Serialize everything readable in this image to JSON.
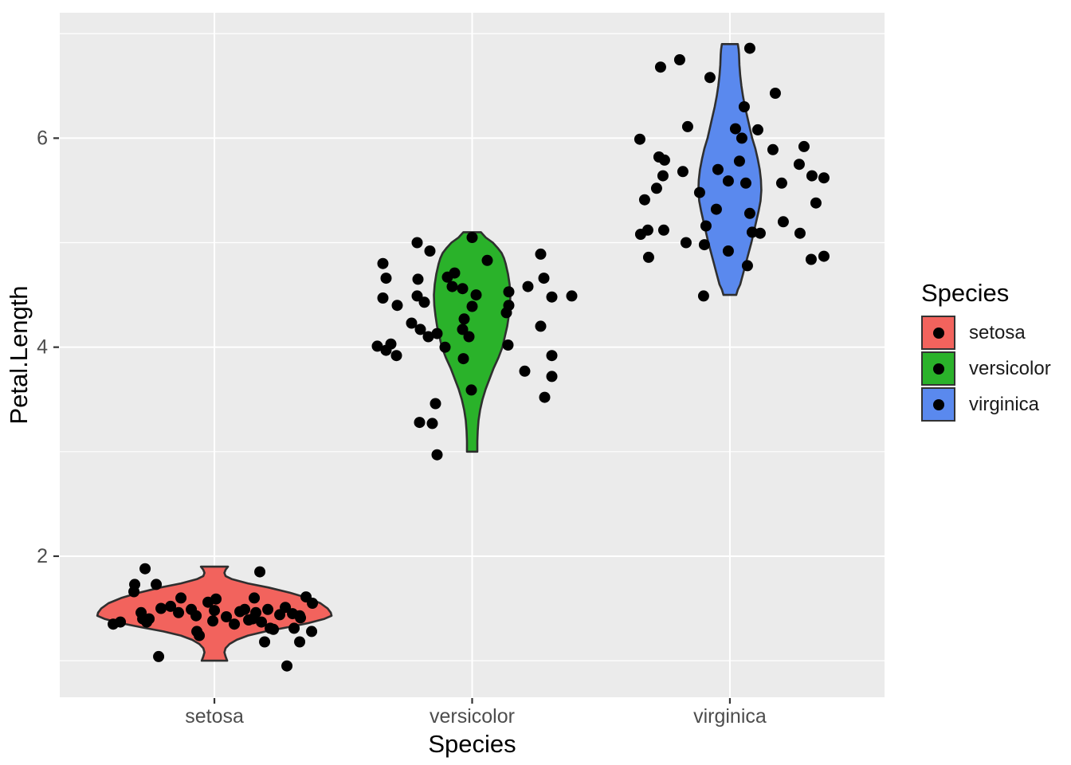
{
  "chart_data": {
    "type": "violin",
    "description": "ggplot-style violin plot with jittered points of iris Petal.Length by Species",
    "x_axis": {
      "label": "Species",
      "categories": [
        "setosa",
        "versicolor",
        "virginica"
      ]
    },
    "y_axis": {
      "label": "Petal.Length",
      "ticks": [
        2,
        4,
        6
      ],
      "minor_ticks": [
        1,
        3,
        5,
        7
      ],
      "range": [
        0.65,
        7.2
      ]
    },
    "legend": {
      "title": "Species",
      "entries": [
        {
          "label": "setosa",
          "color": "#F2635D"
        },
        {
          "label": "versicolor",
          "color": "#2AB22A"
        },
        {
          "label": "virginica",
          "color": "#5A89EE"
        }
      ]
    },
    "style": {
      "panel_bg": "#EBEBEB",
      "grid_color": "#FFFFFF",
      "violin_outline": "#2F2F2F",
      "point_color": "#000000",
      "tick_mark_color": "#333333",
      "tick_label_color": "#4D4D4D",
      "axis_title_color": "#000000"
    },
    "series": [
      {
        "name": "setosa",
        "color": "#F2635D",
        "violin_profile": [
          [
            1.9,
            17
          ],
          [
            1.87,
            14
          ],
          [
            1.84,
            12.5
          ],
          [
            1.81,
            14
          ],
          [
            1.78,
            22
          ],
          [
            1.74,
            42
          ],
          [
            1.7,
            68
          ],
          [
            1.65,
            95
          ],
          [
            1.6,
            117
          ],
          [
            1.55,
            133
          ],
          [
            1.5,
            142
          ],
          [
            1.46,
            146
          ],
          [
            1.43,
            147
          ],
          [
            1.4,
            138
          ],
          [
            1.36,
            118
          ],
          [
            1.32,
            92
          ],
          [
            1.28,
            64
          ],
          [
            1.24,
            42
          ],
          [
            1.2,
            28
          ],
          [
            1.16,
            19
          ],
          [
            1.12,
            14
          ],
          [
            1.08,
            12.5
          ],
          [
            1.04,
            14
          ],
          [
            1.0,
            16
          ]
        ],
        "points": [
          [
            -87,
            1.88
          ],
          [
            57,
            1.85
          ],
          [
            -100,
            1.73
          ],
          [
            -73,
            1.73
          ],
          [
            -101,
            1.66
          ],
          [
            -42,
            1.6
          ],
          [
            2,
            1.59
          ],
          [
            50,
            1.6
          ],
          [
            115,
            1.61
          ],
          [
            123,
            1.55
          ],
          [
            -92,
            1.46
          ],
          [
            -67,
            1.5
          ],
          [
            -45,
            1.46
          ],
          [
            -29,
            1.49
          ],
          [
            -23,
            1.43
          ],
          [
            0,
            1.48
          ],
          [
            32,
            1.47
          ],
          [
            38,
            1.49
          ],
          [
            52,
            1.46
          ],
          [
            67,
            1.49
          ],
          [
            89,
            1.51
          ],
          [
            98,
            1.45
          ],
          [
            107,
            1.43
          ],
          [
            -127,
            1.35
          ],
          [
            -118,
            1.37
          ],
          [
            -90,
            1.4
          ],
          [
            -85,
            1.37
          ],
          [
            -82,
            1.4
          ],
          [
            -2,
            1.38
          ],
          [
            43,
            1.39
          ],
          [
            48,
            1.4
          ],
          [
            59,
            1.37
          ],
          [
            70,
            1.31
          ],
          [
            74,
            1.3
          ],
          [
            100,
            1.31
          ],
          [
            108,
            1.41
          ],
          [
            -22,
            1.28
          ],
          [
            -19,
            1.24
          ],
          [
            122,
            1.28
          ],
          [
            63,
            1.18
          ],
          [
            107,
            1.18
          ],
          [
            -70,
            1.04
          ],
          [
            91,
            0.95
          ],
          [
            -55,
            1.52
          ],
          [
            15,
            1.42
          ],
          [
            -8,
            1.56
          ],
          [
            25,
            1.35
          ],
          [
            82,
            1.44
          ]
        ]
      },
      {
        "name": "versicolor",
        "color": "#2AB22A",
        "violin_profile": [
          [
            5.1,
            11
          ],
          [
            5.05,
            17
          ],
          [
            5.0,
            26
          ],
          [
            4.95,
            32
          ],
          [
            4.9,
            37
          ],
          [
            4.85,
            40
          ],
          [
            4.8,
            42
          ],
          [
            4.7,
            45
          ],
          [
            4.6,
            47
          ],
          [
            4.5,
            48
          ],
          [
            4.4,
            47.5
          ],
          [
            4.3,
            46
          ],
          [
            4.2,
            44
          ],
          [
            4.1,
            41
          ],
          [
            4.0,
            38
          ],
          [
            3.9,
            33
          ],
          [
            3.8,
            27
          ],
          [
            3.7,
            22
          ],
          [
            3.6,
            17
          ],
          [
            3.5,
            13
          ],
          [
            3.4,
            10
          ],
          [
            3.3,
            8
          ],
          [
            3.2,
            7
          ],
          [
            3.1,
            6.5
          ],
          [
            3.0,
            6.5
          ]
        ],
        "points": [
          [
            -69,
            5.0
          ],
          [
            -53,
            4.92
          ],
          [
            0,
            5.05
          ],
          [
            19,
            4.83
          ],
          [
            86,
            4.89
          ],
          [
            -112,
            4.8
          ],
          [
            -108,
            4.66
          ],
          [
            -22,
            4.71
          ],
          [
            -31,
            4.67
          ],
          [
            -68,
            4.65
          ],
          [
            -25,
            4.58
          ],
          [
            -12,
            4.56
          ],
          [
            90,
            4.66
          ],
          [
            70,
            4.58
          ],
          [
            100,
            4.48
          ],
          [
            125,
            4.49
          ],
          [
            -112,
            4.47
          ],
          [
            -94,
            4.4
          ],
          [
            -69,
            4.49
          ],
          [
            -60,
            4.43
          ],
          [
            5,
            4.5
          ],
          [
            0,
            4.39
          ],
          [
            46,
            4.53
          ],
          [
            46,
            4.4
          ],
          [
            43,
            4.33
          ],
          [
            -10,
            4.27
          ],
          [
            -76,
            4.23
          ],
          [
            -12,
            4.17
          ],
          [
            -4,
            4.1
          ],
          [
            -65,
            4.17
          ],
          [
            -55,
            4.1
          ],
          [
            -44,
            4.13
          ],
          [
            86,
            4.2
          ],
          [
            -119,
            4.01
          ],
          [
            -102,
            4.03
          ],
          [
            -108,
            3.97
          ],
          [
            -95,
            3.92
          ],
          [
            -34,
            4.0
          ],
          [
            45,
            4.02
          ],
          [
            -11,
            3.89
          ],
          [
            66,
            3.77
          ],
          [
            100,
            3.92
          ],
          [
            100,
            3.72
          ],
          [
            -1,
            3.59
          ],
          [
            91,
            3.52
          ],
          [
            -46,
            3.46
          ],
          [
            -66,
            3.28
          ],
          [
            -50,
            3.27
          ],
          [
            -44,
            2.97
          ]
        ]
      },
      {
        "name": "virginica",
        "color": "#5A89EE",
        "violin_profile": [
          [
            6.9,
            10
          ],
          [
            6.85,
            11
          ],
          [
            6.8,
            11.5
          ],
          [
            6.7,
            12
          ],
          [
            6.6,
            13
          ],
          [
            6.5,
            14.5
          ],
          [
            6.4,
            16.5
          ],
          [
            6.3,
            19
          ],
          [
            6.2,
            22
          ],
          [
            6.1,
            25
          ],
          [
            6.0,
            28
          ],
          [
            5.9,
            32
          ],
          [
            5.8,
            35
          ],
          [
            5.7,
            37.5
          ],
          [
            5.6,
            39
          ],
          [
            5.5,
            39.5
          ],
          [
            5.4,
            38.5
          ],
          [
            5.3,
            36
          ],
          [
            5.2,
            33
          ],
          [
            5.1,
            30
          ],
          [
            5.0,
            27
          ],
          [
            4.9,
            23.5
          ],
          [
            4.8,
            20
          ],
          [
            4.7,
            16.5
          ],
          [
            4.6,
            13
          ],
          [
            4.55,
            10
          ],
          [
            4.5,
            8
          ]
        ],
        "points": [
          [
            25,
            6.86
          ],
          [
            -63,
            6.75
          ],
          [
            -87,
            6.68
          ],
          [
            -25,
            6.58
          ],
          [
            57,
            6.43
          ],
          [
            18,
            6.3
          ],
          [
            -113,
            5.99
          ],
          [
            -53,
            6.11
          ],
          [
            7,
            6.09
          ],
          [
            15,
            6.0
          ],
          [
            35,
            6.08
          ],
          [
            54,
            5.89
          ],
          [
            93,
            5.92
          ],
          [
            -89,
            5.82
          ],
          [
            -82,
            5.79
          ],
          [
            87,
            5.75
          ],
          [
            -92,
            5.52
          ],
          [
            -59,
            5.68
          ],
          [
            -84,
            5.64
          ],
          [
            12,
            5.78
          ],
          [
            -15,
            5.7
          ],
          [
            -2,
            5.59
          ],
          [
            20,
            5.57
          ],
          [
            65,
            5.57
          ],
          [
            103,
            5.64
          ],
          [
            118,
            5.62
          ],
          [
            -107,
            5.41
          ],
          [
            -38,
            5.48
          ],
          [
            -17,
            5.32
          ],
          [
            25,
            5.28
          ],
          [
            108,
            5.38
          ],
          [
            67,
            5.2
          ],
          [
            -103,
            5.12
          ],
          [
            -112,
            5.08
          ],
          [
            -83,
            5.12
          ],
          [
            -30,
            5.16
          ],
          [
            28,
            5.1
          ],
          [
            38,
            5.09
          ],
          [
            88,
            5.09
          ],
          [
            -55,
            5.0
          ],
          [
            -32,
            4.98
          ],
          [
            -2,
            4.92
          ],
          [
            -102,
            4.86
          ],
          [
            22,
            4.78
          ],
          [
            102,
            4.84
          ],
          [
            118,
            4.87
          ],
          [
            -33,
            4.49
          ]
        ]
      }
    ]
  }
}
